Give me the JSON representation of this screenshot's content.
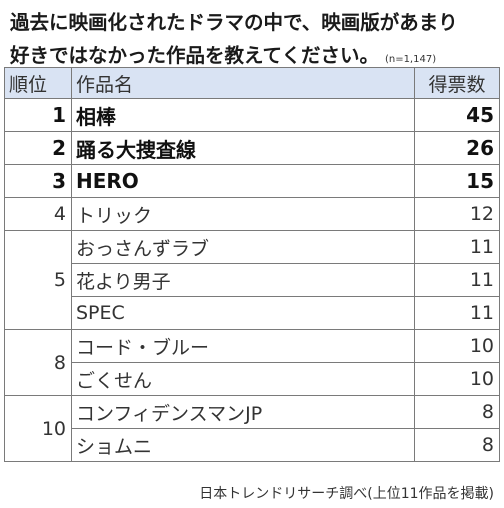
{
  "title": {
    "line1": "過去に映画化されたドラマの中で、映画版があまり",
    "line2": "好きではなかった作品を教えてください。",
    "sample": "(n=1,147)"
  },
  "table": {
    "headers": {
      "rank": "順位",
      "title": "作品名",
      "votes": "得票数"
    },
    "rows": [
      {
        "rank": "1",
        "title": "相棒",
        "votes": "45"
      },
      {
        "rank": "2",
        "title": "踊る大捜査線",
        "votes": "26"
      },
      {
        "rank": "3",
        "title": "HERO",
        "votes": "15"
      },
      {
        "rank": "4",
        "title": "トリック",
        "votes": "12"
      },
      {
        "rank": "5",
        "title": "おっさんずラブ",
        "votes": "11"
      },
      {
        "rank": "",
        "title": "花より男子",
        "votes": "11"
      },
      {
        "rank": "",
        "title": "SPEC",
        "votes": "11"
      },
      {
        "rank": "8",
        "title": "コード・ブルー",
        "votes": "10"
      },
      {
        "rank": "",
        "title": "ごくせん",
        "votes": "10"
      },
      {
        "rank": "10",
        "title": "コンフィデンスマンJP",
        "votes": "8"
      },
      {
        "rank": "",
        "title": "ショムニ",
        "votes": "8"
      }
    ]
  },
  "source": "日本トレンドリサーチ調べ(上位11作品を掲載)"
}
